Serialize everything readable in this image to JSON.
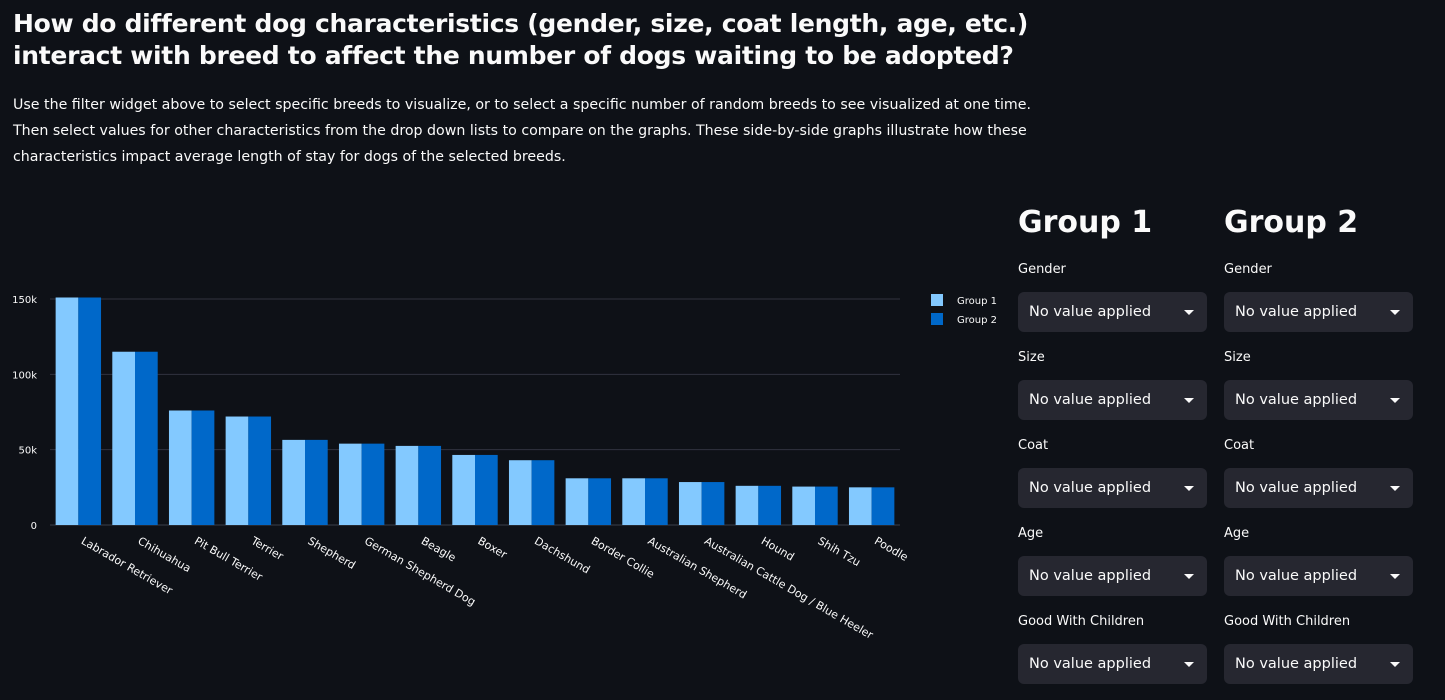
{
  "title": "How do different dog characteristics (gender, size, coat length, age, etc.) interact with breed to affect the number of dogs waiting to be adopted?",
  "description": "Use the filter widget above to select specific breeds to visualize, or to select a specific number of random breeds to see visualized at one time. Then select values for other characteristics from the drop down lists to compare on the graphs. These side-by-side graphs illustrate how these characteristics impact average length of stay for dogs of the selected breeds.",
  "groups": [
    {
      "heading": "Group 1",
      "fields": [
        {
          "label": "Gender",
          "value": "No value applied"
        },
        {
          "label": "Size",
          "value": "No value applied"
        },
        {
          "label": "Coat",
          "value": "No value applied"
        },
        {
          "label": "Age",
          "value": "No value applied"
        },
        {
          "label": "Good With Children",
          "value": "No value applied"
        }
      ]
    },
    {
      "heading": "Group 2",
      "fields": [
        {
          "label": "Gender",
          "value": "No value applied"
        },
        {
          "label": "Size",
          "value": "No value applied"
        },
        {
          "label": "Coat",
          "value": "No value applied"
        },
        {
          "label": "Age",
          "value": "No value applied"
        },
        {
          "label": "Good With Children",
          "value": "No value applied"
        }
      ]
    }
  ],
  "chart_data": {
    "type": "bar",
    "categories": [
      "Labrador Retriever",
      "Chihuahua",
      "Pit Bull Terrier",
      "Terrier",
      "Shepherd",
      "German Shepherd Dog",
      "Beagle",
      "Boxer",
      "Dachshund",
      "Border Collie",
      "Australian Shepherd",
      "Australian Cattle Dog / Blue Heeler",
      "Hound",
      "Shih Tzu",
      "Poodle"
    ],
    "series": [
      {
        "name": "Group 1",
        "color": "#83c9ff",
        "values": [
          151000,
          115000,
          76000,
          72000,
          56500,
          54000,
          52500,
          46500,
          43000,
          31000,
          31000,
          28500,
          26000,
          25500,
          25000
        ]
      },
      {
        "name": "Group 2",
        "color": "#0068c9",
        "values": [
          151000,
          115000,
          76000,
          72000,
          56500,
          54000,
          52500,
          46500,
          43000,
          31000,
          31000,
          28500,
          26000,
          25500,
          25000
        ]
      }
    ],
    "y_ticks": [
      0,
      50000,
      100000,
      150000
    ],
    "y_tick_labels": [
      "0",
      "50k",
      "100k",
      "150k"
    ],
    "ylim": [
      0,
      150000
    ],
    "grid": true,
    "legend": "top-right",
    "title": "",
    "xlabel": "",
    "ylabel": ""
  }
}
